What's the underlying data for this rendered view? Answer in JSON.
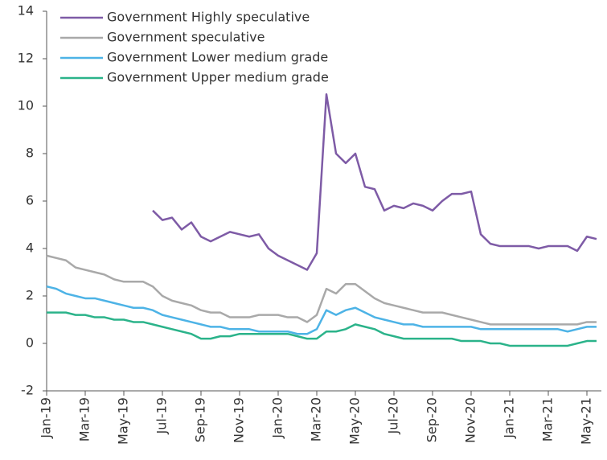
{
  "chart_data": {
    "type": "line",
    "x": [
      0,
      0.5,
      1,
      1.5,
      2,
      2.5,
      3,
      3.5,
      4,
      4.5,
      5,
      5.5,
      6,
      6.5,
      7,
      7.5,
      8,
      8.5,
      9,
      9.5,
      10,
      10.5,
      11,
      11.5,
      12,
      12.5,
      13,
      13.5,
      14,
      14.5,
      15,
      15.5,
      16,
      16.5,
      17,
      17.5,
      18,
      18.5,
      19,
      19.5,
      20,
      20.5,
      21,
      21.5,
      22,
      22.5,
      23,
      23.5,
      24,
      24.5,
      25,
      25.5,
      26,
      26.5,
      27,
      27.5,
      28,
      28.5
    ],
    "series": [
      {
        "name": "Government Highly speculative",
        "color": "#7e5ba6",
        "values": [
          null,
          null,
          null,
          null,
          null,
          null,
          null,
          null,
          null,
          null,
          null,
          5.6,
          5.2,
          5.3,
          4.8,
          5.1,
          4.5,
          4.3,
          4.5,
          4.7,
          4.6,
          4.5,
          4.6,
          4.0,
          3.7,
          3.5,
          3.3,
          3.1,
          3.8,
          10.5,
          8.0,
          7.6,
          8.0,
          6.6,
          6.5,
          5.6,
          5.8,
          5.7,
          5.9,
          5.8,
          5.6,
          6.0,
          6.3,
          6.3,
          6.4,
          4.6,
          4.2,
          4.1,
          4.1,
          4.1,
          4.1,
          4.0,
          4.1,
          4.1,
          4.1,
          3.9,
          4.5,
          4.4
        ]
      },
      {
        "name": "Government speculative",
        "color": "#a9a9a9",
        "values": [
          3.7,
          3.6,
          3.5,
          3.2,
          3.1,
          3.0,
          2.9,
          2.7,
          2.6,
          2.6,
          2.6,
          2.4,
          2.0,
          1.8,
          1.7,
          1.6,
          1.4,
          1.3,
          1.3,
          1.1,
          1.1,
          1.1,
          1.2,
          1.2,
          1.2,
          1.1,
          1.1,
          0.9,
          1.2,
          2.3,
          2.1,
          2.5,
          2.5,
          2.2,
          1.9,
          1.7,
          1.6,
          1.5,
          1.4,
          1.3,
          1.3,
          1.3,
          1.2,
          1.1,
          1.0,
          0.9,
          0.8,
          0.8,
          0.8,
          0.8,
          0.8,
          0.8,
          0.8,
          0.8,
          0.8,
          0.8,
          0.9,
          0.9
        ]
      },
      {
        "name": "Government Lower medium grade",
        "color": "#4db3e6",
        "values": [
          2.4,
          2.3,
          2.1,
          2.0,
          1.9,
          1.9,
          1.8,
          1.7,
          1.6,
          1.5,
          1.5,
          1.4,
          1.2,
          1.1,
          1.0,
          0.9,
          0.8,
          0.7,
          0.7,
          0.6,
          0.6,
          0.6,
          0.5,
          0.5,
          0.5,
          0.5,
          0.4,
          0.4,
          0.6,
          1.4,
          1.2,
          1.4,
          1.5,
          1.3,
          1.1,
          1.0,
          0.9,
          0.8,
          0.8,
          0.7,
          0.7,
          0.7,
          0.7,
          0.7,
          0.7,
          0.6,
          0.6,
          0.6,
          0.6,
          0.6,
          0.6,
          0.6,
          0.6,
          0.6,
          0.5,
          0.6,
          0.7,
          0.7
        ]
      },
      {
        "name": "Government Upper medium grade",
        "color": "#2bb38a",
        "values": [
          1.3,
          1.3,
          1.3,
          1.2,
          1.2,
          1.1,
          1.1,
          1.0,
          1.0,
          0.9,
          0.9,
          0.8,
          0.7,
          0.6,
          0.5,
          0.4,
          0.2,
          0.2,
          0.3,
          0.3,
          0.4,
          0.4,
          0.4,
          0.4,
          0.4,
          0.4,
          0.3,
          0.2,
          0.2,
          0.5,
          0.5,
          0.6,
          0.8,
          0.7,
          0.6,
          0.4,
          0.3,
          0.2,
          0.2,
          0.2,
          0.2,
          0.2,
          0.2,
          0.1,
          0.1,
          0.1,
          0.0,
          0.0,
          -0.1,
          -0.1,
          -0.1,
          -0.1,
          -0.1,
          -0.1,
          -0.1,
          0.0,
          0.1,
          0.1
        ]
      }
    ],
    "xlim": [
      0,
      28.75
    ],
    "xticks": [
      {
        "value": 0,
        "label": "Jan-19"
      },
      {
        "value": 2,
        "label": "Mar-19"
      },
      {
        "value": 4,
        "label": "May-19"
      },
      {
        "value": 6,
        "label": "Jul-19"
      },
      {
        "value": 8,
        "label": "Sep-19"
      },
      {
        "value": 10,
        "label": "Nov-19"
      },
      {
        "value": 12,
        "label": "Jan-20"
      },
      {
        "value": 14,
        "label": "Mar-20"
      },
      {
        "value": 16,
        "label": "May-20"
      },
      {
        "value": 18,
        "label": "Jul-20"
      },
      {
        "value": 20,
        "label": "Sep-20"
      },
      {
        "value": 22,
        "label": "Nov-20"
      },
      {
        "value": 24,
        "label": "Jan-21"
      },
      {
        "value": 26,
        "label": "Mar-21"
      },
      {
        "value": 28,
        "label": "May-21"
      }
    ],
    "ylim": [
      -2,
      14
    ],
    "yticks": [
      -2,
      0,
      2,
      4,
      6,
      8,
      10,
      12,
      14
    ],
    "grid": false,
    "legend": "upper-left"
  }
}
